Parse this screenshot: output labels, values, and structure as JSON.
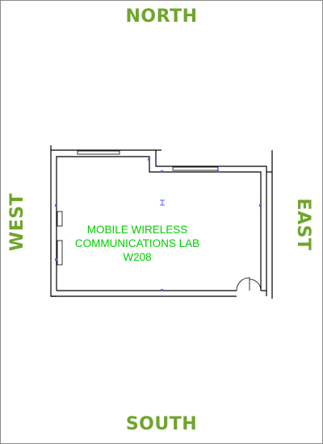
{
  "compass": {
    "north": "NORTH",
    "south": "SOUTH",
    "east": "EAST",
    "west": "WEST"
  },
  "room": {
    "name_line1": "MOBILE WIRELESS",
    "name_line2": "COMMUNICATIONS LAB",
    "number": "W208"
  },
  "colors": {
    "compass_text": "#6fa52d",
    "room_text": "#00cc00",
    "wall": "#000000",
    "fixture": "#3a3aff"
  }
}
